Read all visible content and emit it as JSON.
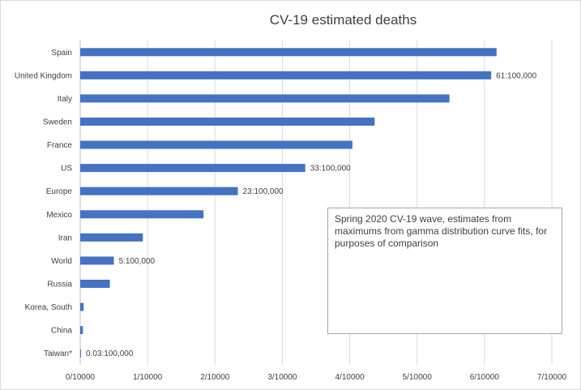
{
  "chart_data": {
    "type": "bar",
    "orientation": "horizontal",
    "title": "CV-19 estimated deaths",
    "categories": [
      "Spain",
      "United Kingdom",
      "Italy",
      "Sweden",
      "France",
      "US",
      "Europe",
      "Mexico",
      "Iran",
      "World",
      "Russia",
      "Korea, South",
      "China",
      "Taiwan*"
    ],
    "values": [
      6.18,
      6.1,
      5.48,
      4.37,
      4.04,
      3.34,
      2.34,
      1.83,
      0.93,
      0.5,
      0.44,
      0.05,
      0.04,
      0.003
    ],
    "data_labels": [
      "",
      "61:100,000",
      "",
      "",
      "",
      "33:100,000",
      "23:100,000",
      "",
      "",
      "5:100,000",
      "",
      "",
      "",
      "0.03:100,000"
    ],
    "x_ticks": [
      "0/10000",
      "1/10000",
      "2/10000",
      "3/10000",
      "4/10000",
      "5/10000",
      "6/10000",
      "7/10000"
    ],
    "xlim": [
      0,
      7
    ],
    "unit": "per 10,000",
    "grid": "vertical",
    "bar_color": "#4472c4",
    "annotation": "Spring 2020  CV-19 wave, estimates from maximums from gamma distribution curve fits, for purposes of comparison"
  }
}
